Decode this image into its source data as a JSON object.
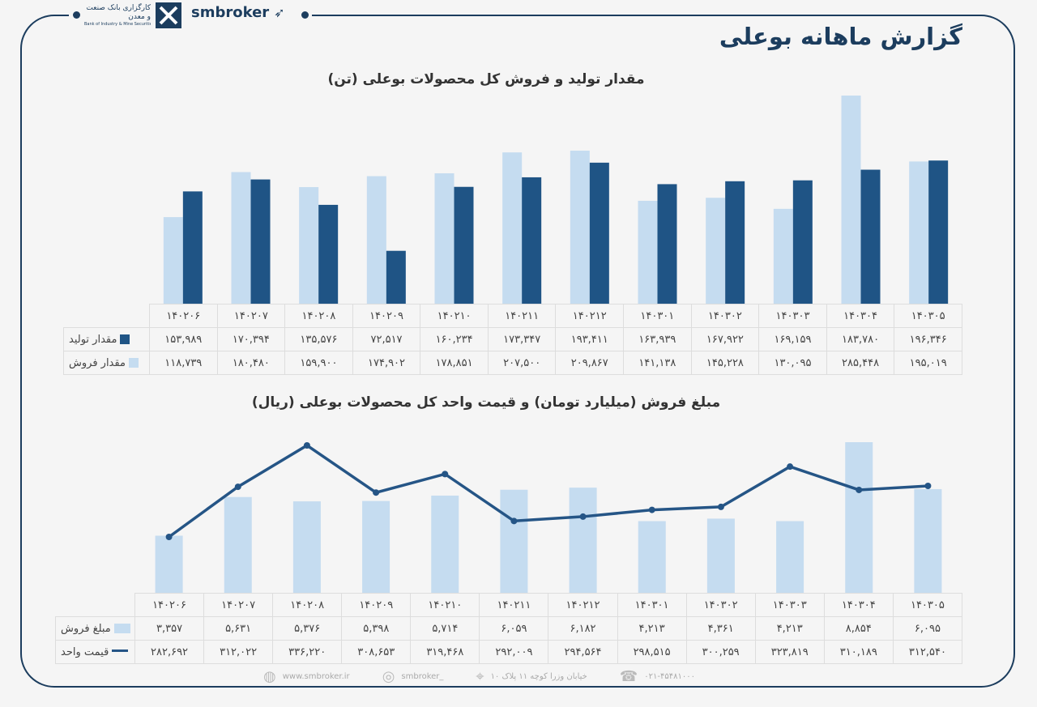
{
  "header": {
    "title": "گزارش ماهانه بوعلی",
    "bank_logo_fa": "کارگزاری بانک صنعت و معدن",
    "bank_logo_en": "Bank of Industry & Mine Securities",
    "brand": "smbroker"
  },
  "colors": {
    "frame": "#1c3d5e",
    "production": "#1f5485",
    "sales": "#c5dcf0",
    "line": "#255586"
  },
  "chart_data": [
    {
      "type": "bar",
      "title": "مقدار تولید و فروش کل محصولات بوعلی (تن)",
      "categories": [
        "۱۴۰۲۰۶",
        "۱۴۰۲۰۷",
        "۱۴۰۲۰۸",
        "۱۴۰۲۰۹",
        "۱۴۰۲۱۰",
        "۱۴۰۲۱۱",
        "۱۴۰۲۱۲",
        "۱۴۰۳۰۱",
        "۱۴۰۳۰۲",
        "۱۴۰۳۰۳",
        "۱۴۰۳۰۴",
        "۱۴۰۳۰۵"
      ],
      "series": [
        {
          "name": "مقدار تولید",
          "values": [
            153989,
            170394,
            135576,
            72517,
            160234,
            173347,
            193411,
            163939,
            167922,
            169159,
            183780,
            196346
          ],
          "labels": [
            "۱۵۳,۹۸۹",
            "۱۷۰,۳۹۴",
            "۱۳۵,۵۷۶",
            "۷۲,۵۱۷",
            "۱۶۰,۲۳۴",
            "۱۷۳,۳۴۷",
            "۱۹۳,۴۱۱",
            "۱۶۳,۹۳۹",
            "۱۶۷,۹۲۲",
            "۱۶۹,۱۵۹",
            "۱۸۳,۷۸۰",
            "۱۹۶,۳۴۶"
          ]
        },
        {
          "name": "مقدار فروش",
          "values": [
            118739,
            180480,
            159900,
            174902,
            178851,
            207500,
            209867,
            141138,
            145228,
            130095,
            285448,
            195019
          ],
          "labels": [
            "۱۱۸,۷۳۹",
            "۱۸۰,۴۸۰",
            "۱۵۹,۹۰۰",
            "۱۷۴,۹۰۲",
            "۱۷۸,۸۵۱",
            "۲۰۷,۵۰۰",
            "۲۰۹,۸۶۷",
            "۱۴۱,۱۳۸",
            "۱۴۵,۲۲۸",
            "۱۳۰,۰۹۵",
            "۲۸۵,۴۴۸",
            "۱۹۵,۰۱۹"
          ]
        }
      ],
      "ylim": [
        0,
        290000
      ],
      "grid": false,
      "legend": "data-table"
    },
    {
      "type": "bar+line",
      "title": "مبلغ فروش (میلیارد تومان) و قیمت واحد کل محصولات بوعلی (ریال)",
      "categories": [
        "۱۴۰۲۰۶",
        "۱۴۰۲۰۷",
        "۱۴۰۲۰۸",
        "۱۴۰۲۰۹",
        "۱۴۰۲۱۰",
        "۱۴۰۲۱۱",
        "۱۴۰۲۱۲",
        "۱۴۰۳۰۱",
        "۱۴۰۳۰۲",
        "۱۴۰۳۰۳",
        "۱۴۰۳۰۴",
        "۱۴۰۳۰۵"
      ],
      "series": [
        {
          "name": "مبلغ فروش",
          "type": "bar",
          "values": [
            3357,
            5631,
            5376,
            5398,
            5714,
            6059,
            6182,
            4213,
            4361,
            4213,
            8854,
            6095
          ],
          "labels": [
            "۳,۳۵۷",
            "۵,۶۳۱",
            "۵,۳۷۶",
            "۵,۳۹۸",
            "۵,۷۱۴",
            "۶,۰۵۹",
            "۶,۱۸۲",
            "۴,۲۱۳",
            "۴,۳۶۱",
            "۴,۲۱۳",
            "۸,۸۵۴",
            "۶,۰۹۵"
          ]
        },
        {
          "name": "قیمت واحد",
          "type": "line",
          "values": [
            282692,
            312022,
            336220,
            308653,
            319468,
            292009,
            294564,
            298515,
            300259,
            323819,
            310189,
            312540
          ],
          "labels": [
            "۲۸۲,۶۹۲",
            "۳۱۲,۰۲۲",
            "۳۳۶,۲۲۰",
            "۳۰۸,۶۵۳",
            "۳۱۹,۴۶۸",
            "۲۹۲,۰۰۹",
            "۲۹۴,۵۶۴",
            "۲۹۸,۵۱۵",
            "۳۰۰,۲۵۹",
            "۳۲۳,۸۱۹",
            "۳۱۰,۱۸۹",
            "۳۱۲,۵۴۰"
          ]
        }
      ],
      "grid": false,
      "legend": "data-table"
    }
  ],
  "footer": {
    "website": "www.smbroker.ir",
    "instagram": "smbroker_",
    "address": "خیابان وزرا کوچه ۱۱ پلاک ۱۰",
    "phone": "۰۲۱-۴۵۴۸۱۰۰۰"
  }
}
